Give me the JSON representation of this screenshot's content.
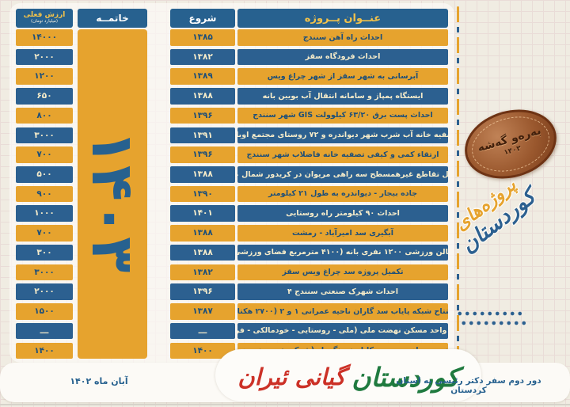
{
  "table": {
    "headers": {
      "title": "عنــوان پــروژه",
      "start": "شروع",
      "end": "خاتمــه",
      "value": "ارزش فعلی",
      "value_sub": "(میلیارد تومان)"
    },
    "end_year": "۱۴۰۳",
    "rows": [
      {
        "title": "احداث راه آهن سنندج",
        "start": "۱۳۸۵",
        "value": "۱۴۰۰۰"
      },
      {
        "title": "احداث فرودگاه سقز",
        "start": "۱۳۸۲",
        "value": "۲۰۰۰"
      },
      {
        "title": "آبرسانی به شهر سقز از شهر چراغ ویس",
        "start": "۱۳۸۹",
        "value": "۱۲۰۰"
      },
      {
        "title": "ایستگاه پمپاژ و سامانه انتقال آب بویین بانه",
        "start": "۱۳۸۸",
        "value": "۶۵۰"
      },
      {
        "title": "احداث پست برق ۶۳/۲۰ کیلوولت GIS شهر سنندج",
        "start": "۱۳۹۶",
        "value": "۸۰۰"
      },
      {
        "title": "تصفیه خانه آب شرب شهر دیواندره و ۷۲ روستای مجتمع اوباتو",
        "start": "۱۳۹۱",
        "value": "۳۰۰۰"
      },
      {
        "title": "ارتقاء کمی و کیفی تصفیه خانه فاضلاب شهر سنندج",
        "start": "۱۳۹۶",
        "value": "۷۰۰"
      },
      {
        "title": "تکمیل تقاطع غیرهمسطح سه راهی مریوان در کریدور شمال غرب",
        "start": "۱۳۸۸",
        "value": "۵۰۰"
      },
      {
        "title": "جاده بیجار - دیواندره به طول ۲۱ کیلومتر",
        "start": "۱۳۹۰",
        "value": "۹۰۰"
      },
      {
        "title": "احداث ۹۰ کیلومتر راه روستایی",
        "start": "۱۴۰۱",
        "value": "۱۰۰۰"
      },
      {
        "title": "آبگیری سد امیرآباد - رمشت",
        "start": "۱۳۸۸",
        "value": "۷۰۰"
      },
      {
        "title": "سالن ورزشی ۱۲۰۰ نفری بانه (۴۱۰۰ مترمربع فضای ورزشی)",
        "start": "۱۳۸۸",
        "value": "۳۰۰"
      },
      {
        "title": "تکمیل پروژه سد چراغ ویس سقز",
        "start": "۱۳۸۲",
        "value": "۳۰۰۰"
      },
      {
        "title": "احداث شهرک صنعتی سنندج ۴",
        "start": "۱۳۹۶",
        "value": "۲۰۰۰"
      },
      {
        "title": "افتتاح شبکه پایاب سد گاران ناحیه عمرانی ۱ و ۲ (۲۷۰۰ هکتار)",
        "start": "۱۳۸۷",
        "value": "۱۵۰۰"
      },
      {
        "title": "احداث ۵۸۰۰ واحد مسکن نهضت ملی (ملی - روستایی - خودمالکی - فرسوده و ...)",
        "start": "ـــ",
        "value": "ـــ"
      },
      {
        "title": "تعویض سیمهای مسی به کابل خودنگهدار (شرکت توزیع نیروی برق)",
        "start": "۱۴۰۰",
        "value": "۱۴۰۰"
      }
    ]
  },
  "sidebar": {
    "stamp_text": "به‌ره‌و گه‌شه",
    "stamp_year": "۱۴۰۳",
    "calligraphy_line1": "پروژه‌های",
    "calligraphy_line2": "کوردستان"
  },
  "footer": {
    "date": "آبان ماه ۱۴۰۲",
    "trip_title": "دور دوم سفر دکتر رئیسی به استان کردستان",
    "logo_green": "کوردستان",
    "logo_red": "گیانی ئیران"
  },
  "colors": {
    "blue": "#2c6090",
    "yellow": "#e6a32e",
    "copper": "#9a582e",
    "logo_green": "#1f7a3f",
    "logo_red": "#cc3127",
    "background": "#f0ece2"
  }
}
